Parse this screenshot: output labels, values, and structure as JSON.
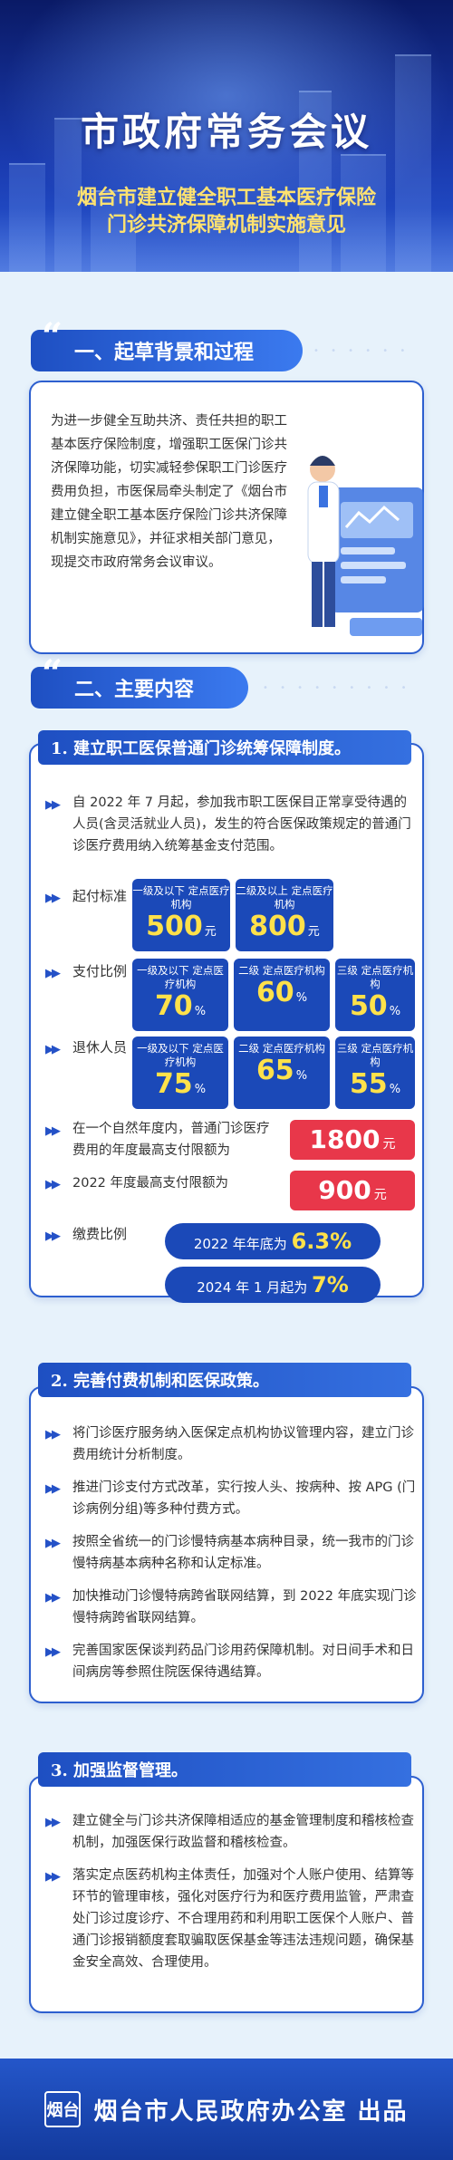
{
  "header": {
    "title": "市政府常务会议",
    "subtitle_line1": "烟台市建立健全职工基本医疗保险",
    "subtitle_line2": "门诊共济保障机制实施意见"
  },
  "section1": {
    "title": "一、起草背景和过程",
    "body": "为进一步健全互助共济、责任共担的职工基本医疗保险制度，增强职工医保门诊共济保障功能，切实减轻参保职工门诊医疗费用负担，市医保局牵头制定了《烟台市建立健全职工基本医疗保险门诊共济保障机制实施意见》，并征求相关部门意见，现提交市政府常务会议审议。"
  },
  "section2": {
    "title": "二、主要内容",
    "part1": {
      "title": "1. 建立职工医保普通门诊统筹保障制度。",
      "text": "自 2022 年 7 月起，参加我市职工医保目正常享受待遇的人员(含灵活就业人员)，发生的符合医保政策规定的普通门诊医疗费用纳入统筹基金支付范围。",
      "threshold_label": "起付标准",
      "threshold": [
        {
          "tier": "一级及以下 定点医疗机构",
          "value": "500",
          "unit": "元"
        },
        {
          "tier": "二级及以上 定点医疗机构",
          "value": "800",
          "unit": "元"
        }
      ],
      "ratio_label": "支付比例",
      "ratio": [
        {
          "tier": "一级及以下 定点医疗机构",
          "value": "70",
          "unit": "%"
        },
        {
          "tier": "二级 定点医疗机构",
          "value": "60",
          "unit": "%"
        },
        {
          "tier": "三级 定点医疗机构",
          "value": "50",
          "unit": "%"
        }
      ],
      "retiree_label": "退休人员",
      "retiree": [
        {
          "tier": "一级及以下 定点医疗机构",
          "value": "75",
          "unit": "%"
        },
        {
          "tier": "二级 定点医疗机构",
          "value": "65",
          "unit": "%"
        },
        {
          "tier": "三级 定点医疗机构",
          "value": "55",
          "unit": "%"
        }
      ],
      "limit_text": "在一个自然年度内，普通门诊医疗费用的年度最高支付限额为",
      "limit_value": "1800",
      "limit_unit": "元",
      "limit2022_text": "2022 年度最高支付限额为",
      "limit2022_value": "900",
      "limit2022_unit": "元",
      "contrib_label": "缴费比例",
      "contrib1_text": "2022 年年底为",
      "contrib1_value": "6.3%",
      "contrib2_text": "2024 年 1 月起为",
      "contrib2_value": "7%"
    },
    "part2": {
      "title": "2. 完善付费机制和医保政策。",
      "items": [
        "将门诊医疗服务纳入医保定点机构协议管理内容，建立门诊费用统计分析制度。",
        "推进门诊支付方式改革，实行按人头、按病种、按 APG (门诊病例分组)等多种付费方式。",
        "按照全省统一的门诊慢特病基本病种目录，统一我市的门诊慢特病基本病种名称和认定标准。",
        "加快推动门诊慢特病跨省联网结算，到 2022 年底实现门诊慢特病跨省联网结算。",
        "完善国家医保谈判药品门诊用药保障机制。对日间手术和日间病房等参照住院医保待遇结算。"
      ]
    },
    "part3": {
      "title": "3. 加强监督管理。",
      "items": [
        "建立健全与门诊共济保障相适应的基金管理制度和稽核检查机制，加强医保行政监督和稽核检查。",
        "落实定点医药机构主体责任，加强对个人账户使用、结算等环节的管理审核，强化对医疗行为和医疗费用监管，严肃查处门诊过度诊疗、不合理用药和利用职工医保个人账户、普通门诊报销额度套取骗取医保基金等违法违规问题，确保基金安全高效、合理使用。"
      ]
    }
  },
  "footer": {
    "logo_text": "烟台",
    "org": "烟台市人民政府办公室 出品"
  }
}
